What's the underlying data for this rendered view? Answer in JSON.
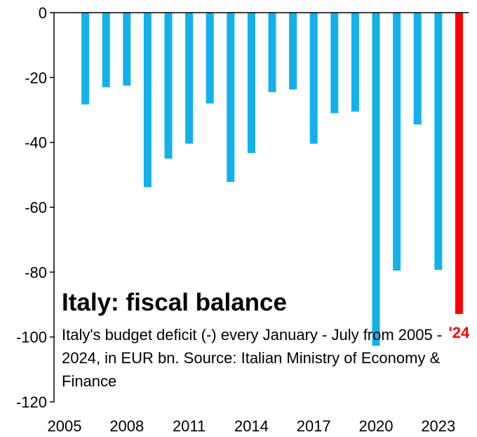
{
  "chart_data": {
    "type": "bar",
    "title": "Italy: fiscal balance",
    "subtitle": "Italy's budget deficit (-) every January - July from 2005 - 2024, in EUR bn. Source: Italian Ministry of Economy & Finance",
    "xlabel": "",
    "ylabel": "",
    "categories": [
      "2005",
      "2006",
      "2007",
      "2008",
      "2009",
      "2010",
      "2011",
      "2012",
      "2013",
      "2014",
      "2015",
      "2016",
      "2017",
      "2018",
      "2019",
      "2020",
      "2021",
      "2022",
      "2023",
      "2024"
    ],
    "values": [
      0,
      -28.3,
      -23.0,
      -22.5,
      -53.8,
      -45.0,
      -40.4,
      -28.0,
      -52.2,
      -43.3,
      -24.5,
      -23.7,
      -40.4,
      -31.0,
      -30.5,
      -102.7,
      -79.5,
      -34.5,
      -79.3,
      -92.9
    ],
    "ylim": [
      -120,
      0
    ],
    "yticks": [
      0,
      -20,
      -40,
      -60,
      -80,
      -100,
      -120
    ],
    "xtick_labels": [
      "2005",
      "2008",
      "2011",
      "2014",
      "2017",
      "2020",
      "2023"
    ],
    "highlight": {
      "category": "2024",
      "label": "'24"
    },
    "colors": {
      "default_bar": "#13b1ea",
      "highlight_bar": "#ff0000",
      "axis": "#000000"
    },
    "grid": false,
    "legend": "none"
  }
}
